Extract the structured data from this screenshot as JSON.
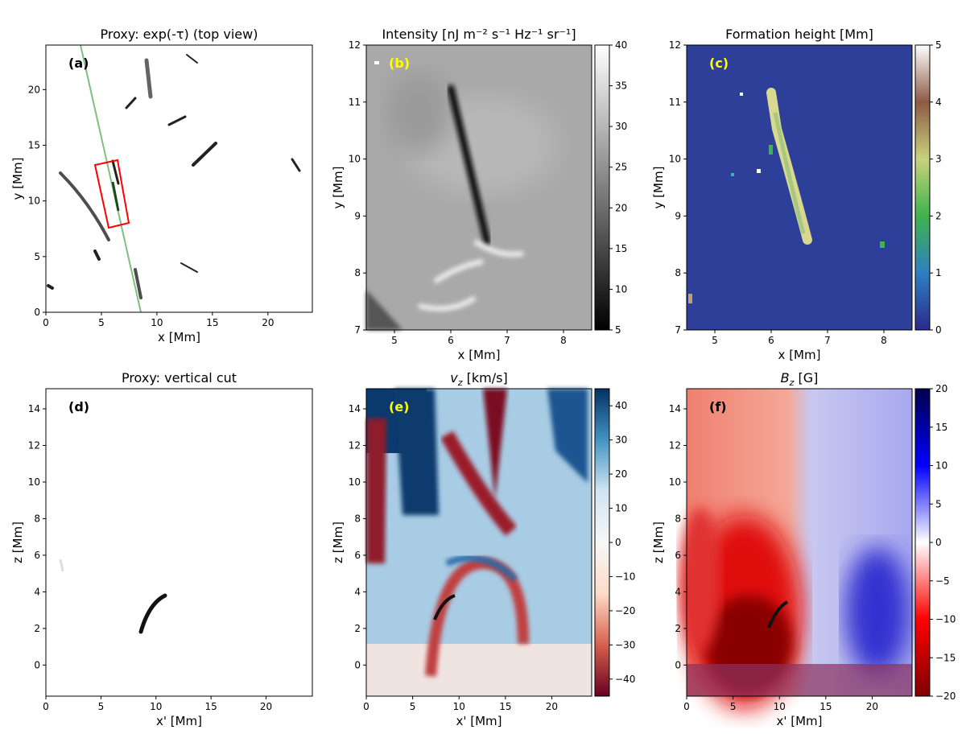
{
  "chart_data": [
    {
      "id": "a",
      "type": "heatmap",
      "title": "Proxy: exp(-τ) (top view)",
      "panel_label": "(a)",
      "panel_label_color": "#000000",
      "xlabel": "x [Mm]",
      "ylabel": "y [Mm]",
      "xlim": [
        0,
        24
      ],
      "ylim": [
        0,
        24
      ],
      "xticks": [
        0,
        5,
        10,
        15,
        20
      ],
      "yticks": [
        0,
        5,
        10,
        15,
        20
      ],
      "colormap": "gray_r",
      "overlays": {
        "cut_line": {
          "color": "#7fbf7f",
          "from": [
            3.0,
            24
          ],
          "to": [
            8.6,
            0
          ]
        },
        "box": {
          "color": "#ff0000",
          "corners": [
            [
              4.5,
              13.2
            ],
            [
              6.2,
              13.6
            ],
            [
              7.5,
              7.9
            ],
            [
              5.7,
              7.5
            ]
          ]
        }
      }
    },
    {
      "id": "b",
      "type": "heatmap",
      "title": "Intensity [nJ m⁻² s⁻¹ Hz⁻¹ sr⁻¹]",
      "panel_label": "(b)",
      "panel_label_color": "#ffff00",
      "xlabel": "x [Mm]",
      "ylabel": "y [Mm]",
      "xlim": [
        4.5,
        8.5
      ],
      "ylim": [
        7,
        12
      ],
      "xticks": [
        5,
        6,
        7,
        8
      ],
      "yticks": [
        7,
        8,
        9,
        10,
        11,
        12
      ],
      "colormap": "gray",
      "colorbar": {
        "range": [
          5,
          40
        ],
        "ticks": [
          5,
          10,
          15,
          20,
          25,
          30,
          35,
          40
        ],
        "colors": [
          "#000000",
          "#ffffff"
        ]
      }
    },
    {
      "id": "c",
      "type": "heatmap",
      "title": "Formation height [Mm]",
      "panel_label": "(c)",
      "panel_label_color": "#ffff00",
      "xlabel": "x [Mm]",
      "ylabel": "y [Mm]",
      "xlim": [
        4.5,
        8.5
      ],
      "ylim": [
        7,
        12
      ],
      "xticks": [
        5,
        6,
        7,
        8
      ],
      "yticks": [
        7,
        8,
        9,
        10,
        11,
        12
      ],
      "colormap": "gist_earth",
      "colorbar": {
        "range": [
          0,
          5
        ],
        "ticks": [
          0,
          1,
          2,
          3,
          4,
          5
        ],
        "colors": [
          "#2a2a8c",
          "#2f7fc1",
          "#3eb34c",
          "#c9d27d",
          "#8d5a44",
          "#ffffff"
        ]
      }
    },
    {
      "id": "d",
      "type": "heatmap",
      "title": "Proxy: vertical cut",
      "panel_label": "(d)",
      "panel_label_color": "#000000",
      "xlabel": "x' [Mm]",
      "ylabel": "z [Mm]",
      "xlim": [
        0,
        24.2
      ],
      "ylim": [
        -1.7,
        15.1
      ],
      "xticks": [
        0,
        5,
        10,
        15,
        20
      ],
      "yticks": [
        0,
        2,
        4,
        6,
        8,
        10,
        12,
        14
      ],
      "colormap": "gray_r"
    },
    {
      "id": "e",
      "type": "heatmap",
      "title": "v_z [km/s]",
      "title_main": "v",
      "title_sub": "z",
      "title_unit": " [km/s]",
      "panel_label": "(e)",
      "panel_label_color": "#ffff00",
      "xlabel": "x' [Mm]",
      "ylabel": "z [Mm]",
      "xlim": [
        0,
        24.3
      ],
      "ylim": [
        -1.7,
        15.1
      ],
      "xticks": [
        0,
        5,
        10,
        15,
        20
      ],
      "yticks": [
        0,
        2,
        4,
        6,
        8,
        10,
        12,
        14
      ],
      "colormap": "RdBu",
      "colorbar": {
        "range": [
          -45,
          45
        ],
        "ticks": [
          -40,
          -30,
          -20,
          -10,
          0,
          10,
          20,
          30,
          40
        ],
        "colors": [
          "#67001f",
          "#d6604d",
          "#fddbc7",
          "#f7f7f7",
          "#d1e5f0",
          "#4393c3",
          "#053061"
        ]
      }
    },
    {
      "id": "f",
      "type": "heatmap",
      "title": "B_z [G]",
      "title_main": "B",
      "title_sub": "z",
      "title_unit": " [G]",
      "panel_label": "(f)",
      "panel_label_color": "#000000",
      "xlabel": "x' [Mm]",
      "ylabel": "z [Mm]",
      "xlim": [
        0,
        24.3
      ],
      "ylim": [
        -1.7,
        15.1
      ],
      "xticks": [
        0,
        5,
        10,
        15,
        20
      ],
      "yticks": [
        0,
        2,
        4,
        6,
        8,
        10,
        12,
        14
      ],
      "colormap": "seismic",
      "colorbar": {
        "range": [
          -20,
          20
        ],
        "ticks": [
          -20,
          -15,
          -10,
          -5,
          0,
          5,
          10,
          15,
          20
        ],
        "colors": [
          "#7f0000",
          "#ff0000",
          "#ffffff",
          "#0000ff",
          "#00004c"
        ]
      }
    }
  ]
}
